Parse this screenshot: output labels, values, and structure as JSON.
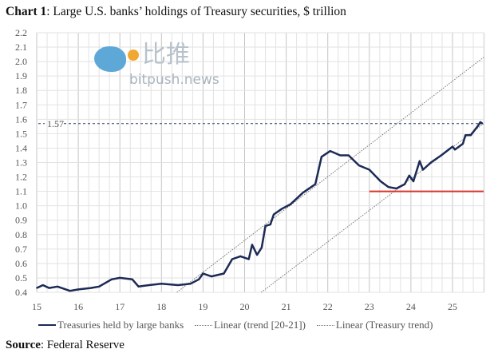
{
  "title": {
    "bold": "Chart 1",
    "rest": ": Large U.S. banks’ holdings of Treasury securities, $ trillion"
  },
  "source": {
    "bold": "Source",
    "rest": ": Federal Reserve"
  },
  "watermark": {
    "cn": "比推",
    "en": "bitpush.news"
  },
  "chart_data": {
    "type": "line",
    "title": "Chart 1: Large U.S. banks’ holdings of Treasury securities, $ trillion",
    "xlabel": "",
    "ylabel": "",
    "xlim": [
      15,
      25.77
    ],
    "ylim": [
      0.4,
      2.2
    ],
    "xticks": [
      "15",
      "16",
      "17",
      "18",
      "19",
      "20",
      "21",
      "22",
      "23",
      "24",
      "25"
    ],
    "yticks": [
      "0.4",
      "0.5",
      "0.6",
      "0.7",
      "0.8",
      "0.9",
      "1.0",
      "1.1",
      "1.2",
      "1.3",
      "1.4",
      "1.5",
      "1.6",
      "1.7",
      "1.8",
      "1.9",
      "2.0",
      "2.1",
      "2.2"
    ],
    "grid": true,
    "legend_position": "bottom",
    "colors": {
      "series": "#1c2a55",
      "reference": "#d9342b",
      "trend": "#777777",
      "marker_line": "#2a3a60"
    },
    "series": [
      {
        "name": "Treasuries held by large banks",
        "style": "solid",
        "x": [
          15.0,
          15.15,
          15.3,
          15.5,
          15.8,
          16.0,
          16.3,
          16.5,
          16.8,
          17.0,
          17.3,
          17.45,
          17.7,
          18.0,
          18.4,
          18.7,
          18.9,
          19.0,
          19.2,
          19.5,
          19.7,
          19.9,
          20.1,
          20.18,
          20.3,
          20.41,
          20.5,
          20.62,
          20.7,
          20.9,
          21.1,
          21.4,
          21.7,
          21.85,
          22.06,
          22.3,
          22.5,
          22.75,
          23.0,
          23.27,
          23.46,
          23.65,
          23.85,
          23.96,
          24.06,
          24.21,
          24.29,
          24.48,
          24.73,
          25.0,
          25.06,
          25.25,
          25.31,
          25.44,
          25.6,
          25.67,
          25.72
        ],
        "values": [
          0.43,
          0.45,
          0.43,
          0.44,
          0.41,
          0.42,
          0.43,
          0.44,
          0.49,
          0.5,
          0.49,
          0.44,
          0.45,
          0.46,
          0.45,
          0.46,
          0.49,
          0.53,
          0.51,
          0.53,
          0.63,
          0.65,
          0.63,
          0.73,
          0.66,
          0.71,
          0.86,
          0.87,
          0.94,
          0.98,
          1.01,
          1.09,
          1.15,
          1.34,
          1.38,
          1.35,
          1.35,
          1.28,
          1.25,
          1.17,
          1.13,
          1.12,
          1.15,
          1.21,
          1.17,
          1.31,
          1.25,
          1.3,
          1.35,
          1.41,
          1.39,
          1.43,
          1.49,
          1.49,
          1.55,
          1.58,
          1.57
        ]
      },
      {
        "name": "Linear (trend [20-21])",
        "style": "dotted",
        "x": [
          18.37,
          25.75
        ],
        "values": [
          0.4,
          2.03
        ]
      },
      {
        "name": "Linear (Treasury trend)",
        "style": "dotted",
        "x": [
          20.4,
          25.75
        ],
        "values": [
          0.4,
          1.57
        ]
      }
    ],
    "annotations": [
      {
        "type": "hline",
        "value": 1.57,
        "label": "1.57",
        "style": "dashed"
      },
      {
        "type": "segment",
        "value": 1.1,
        "x": [
          23.0,
          25.75
        ],
        "color": "#d9342b"
      }
    ]
  }
}
